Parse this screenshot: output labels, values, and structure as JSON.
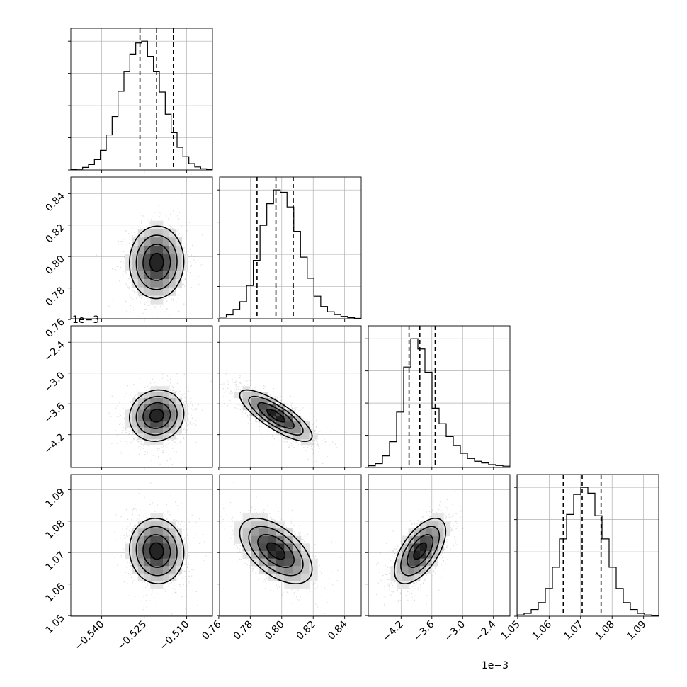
{
  "chart_data": {
    "type": "corner",
    "grid": true,
    "params": [
      {
        "id": "p0",
        "range": [
          -0.5509,
          -0.5009
        ],
        "ticks": [
          -0.54,
          -0.525,
          -0.51
        ],
        "tick_labels": [
          "−0.540",
          "−0.525",
          "−0.510"
        ],
        "quantiles": [
          -0.5265,
          -0.5206,
          -0.5147
        ],
        "hist": [
          0.003,
          0.007,
          0.02,
          0.042,
          0.08,
          0.152,
          0.272,
          0.415,
          0.611,
          0.766,
          0.9,
          0.986,
          1.0,
          0.882,
          0.767,
          0.605,
          0.433,
          0.289,
          0.176,
          0.103,
          0.049,
          0.023,
          0.009,
          0.003
        ]
      },
      {
        "id": "p1",
        "range": [
          0.7605,
          0.8505
        ],
        "ticks": [
          0.76,
          0.78,
          0.8,
          0.82,
          0.84
        ],
        "tick_labels": [
          "0.76",
          "0.78",
          "0.80",
          "0.82",
          "0.84"
        ],
        "quantiles": [
          0.7843,
          0.7963,
          0.8073
        ],
        "hist": [
          0.012,
          0.03,
          0.072,
          0.132,
          0.258,
          0.453,
          0.725,
          0.893,
          1.0,
          0.982,
          0.868,
          0.679,
          0.478,
          0.314,
          0.175,
          0.095,
          0.054,
          0.032,
          0.018,
          0.008,
          0.003
        ]
      },
      {
        "id": "p2",
        "range": [
          -0.004839,
          -0.002079
        ],
        "ticks": [
          -0.0042,
          -0.0036,
          -0.003,
          -0.0024
        ],
        "tick_labels": [
          "−4.2",
          "−3.6",
          "−3.0",
          "−2.4"
        ],
        "offset_text": "1e−3",
        "quantiles": [
          -0.004044,
          -0.003835,
          -0.003535
        ],
        "hist": [
          0.013,
          0.03,
          0.09,
          0.2,
          0.43,
          0.78,
          1.0,
          0.92,
          0.74,
          0.46,
          0.34,
          0.24,
          0.17,
          0.11,
          0.07,
          0.048,
          0.035,
          0.022,
          0.015,
          0.01
        ]
      },
      {
        "id": "p3",
        "range": [
          1.0498,
          1.0948
        ],
        "ticks": [
          1.05,
          1.06,
          1.07,
          1.08,
          1.09
        ],
        "tick_labels": [
          "1.05",
          "1.06",
          "1.07",
          "1.08",
          "1.09"
        ],
        "quantiles": [
          1.0645,
          1.0705,
          1.0765
        ],
        "hist": [
          0.01,
          0.022,
          0.052,
          0.105,
          0.215,
          0.38,
          0.6,
          0.79,
          0.945,
          1.0,
          0.955,
          0.78,
          0.6,
          0.38,
          0.215,
          0.105,
          0.052,
          0.022,
          0.01,
          0.004
        ]
      }
    ],
    "pairs": [
      {
        "x": "p0",
        "y": "p1",
        "mean": [
          -0.5206,
          0.7963
        ],
        "sd": [
          0.0048,
          0.0115
        ],
        "rho": 0.02
      },
      {
        "x": "p0",
        "y": "p2",
        "mean": [
          -0.5206,
          -0.00383
        ],
        "sd": [
          0.0048,
          0.00025
        ],
        "rho": 0.08
      },
      {
        "x": "p1",
        "y": "p2",
        "mean": [
          0.7963,
          -0.00383
        ],
        "sd": [
          0.0115,
          0.00025
        ],
        "rho": -0.8
      },
      {
        "x": "p0",
        "y": "p3",
        "mean": [
          -0.5206,
          1.0705
        ],
        "sd": [
          0.0048,
          0.0052
        ],
        "rho": -0.05
      },
      {
        "x": "p1",
        "y": "p3",
        "mean": [
          0.7963,
          1.0705
        ],
        "sd": [
          0.0115,
          0.0052
        ],
        "rho": -0.55
      },
      {
        "x": "p2",
        "y": "p3",
        "mean": [
          -0.00383,
          1.0705
        ],
        "sd": [
          0.00025,
          0.0052
        ],
        "rho": 0.6
      }
    ],
    "contour_levels": [
      "0.5σ",
      "1σ",
      "1.5σ",
      "2σ"
    ],
    "colors": {
      "line": "#000000",
      "grid": "#b0b0b0",
      "points": "#9a9a9a"
    }
  }
}
